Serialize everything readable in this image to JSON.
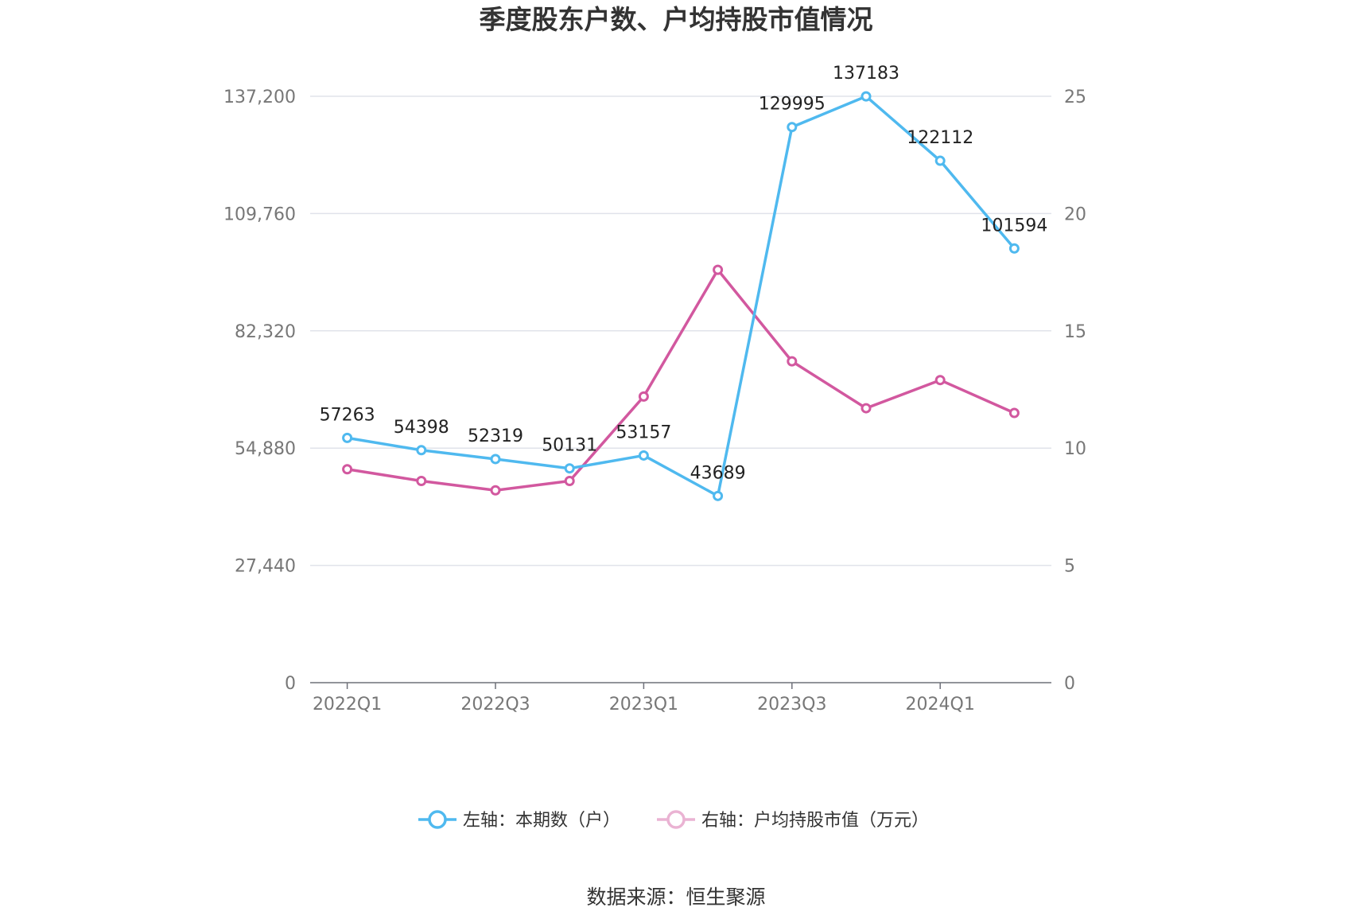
{
  "chart_data": {
    "type": "line",
    "title": "季度股东户数、户均持股市值情况",
    "categories": [
      "2022Q1",
      "2022Q2",
      "2022Q3",
      "2022Q4",
      "2023Q1",
      "2023Q2",
      "2023Q3",
      "2023Q4",
      "2024Q1",
      "2024Q2"
    ],
    "x_tick_labels": [
      "2022Q1",
      "2022Q3",
      "2023Q1",
      "2023Q3",
      "2024Q1"
    ],
    "left_axis": {
      "min": 0,
      "max": 137200,
      "ticks": [
        "0",
        "27,440",
        "54,880",
        "82,320",
        "109,760",
        "137,200"
      ]
    },
    "right_axis": {
      "min": 0,
      "max": 25,
      "ticks": [
        "0",
        "5",
        "10",
        "15",
        "20",
        "25"
      ]
    },
    "series": [
      {
        "name": "左轴：本期数（户）",
        "axis": "left",
        "color": "#4fb9ef",
        "values": [
          57263,
          54398,
          52319,
          50131,
          53157,
          43689,
          129995,
          137183,
          122112,
          101594
        ],
        "labels": [
          "57263",
          "54398",
          "52319",
          "50131",
          "53157",
          "43689",
          "129995",
          "137183",
          "122112",
          "101594"
        ]
      },
      {
        "name": "右轴：户均持股市值（万元）",
        "axis": "right",
        "color": "#d2589f",
        "values": [
          9.1,
          8.6,
          8.2,
          8.6,
          12.2,
          17.6,
          13.7,
          11.7,
          12.9,
          11.5
        ]
      }
    ],
    "legend_position": "bottom-center",
    "grid": true
  },
  "source": "数据来源：恒生聚源"
}
